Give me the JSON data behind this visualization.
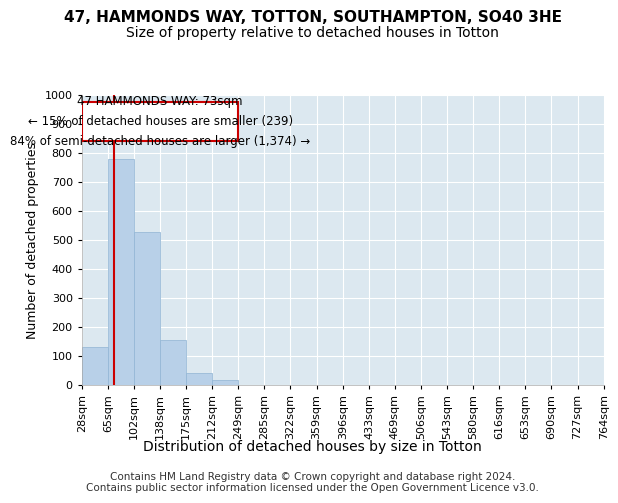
{
  "title": "47, HAMMONDS WAY, TOTTON, SOUTHAMPTON, SO40 3HE",
  "subtitle": "Size of property relative to detached houses in Totton",
  "xlabel": "Distribution of detached houses by size in Totton",
  "ylabel": "Number of detached properties",
  "bin_edges": [
    28,
    65,
    102,
    138,
    175,
    212,
    249,
    285,
    322,
    359,
    396,
    433,
    469,
    506,
    543,
    580,
    616,
    653,
    690,
    727,
    764
  ],
  "bar_heights": [
    130,
    780,
    525,
    155,
    40,
    15,
    0,
    0,
    0,
    0,
    0,
    0,
    0,
    0,
    0,
    0,
    0,
    0,
    0,
    0
  ],
  "bar_color": "#b8d0e8",
  "bar_edge_color": "#90b4d4",
  "property_size": 73,
  "red_line_color": "#cc0000",
  "annotation_line1": "47 HAMMONDS WAY: 73sqm",
  "annotation_line2": "← 15% of detached houses are smaller (239)",
  "annotation_line3": "84% of semi-detached houses are larger (1,374) →",
  "annotation_box_color": "#ffffff",
  "annotation_box_edge_color": "#cc0000",
  "ylim": [
    0,
    1000
  ],
  "yticks": [
    0,
    100,
    200,
    300,
    400,
    500,
    600,
    700,
    800,
    900,
    1000
  ],
  "background_color": "#dce8f0",
  "footer_text": "Contains HM Land Registry data © Crown copyright and database right 2024.\nContains public sector information licensed under the Open Government Licence v3.0.",
  "title_fontsize": 11,
  "subtitle_fontsize": 10,
  "xlabel_fontsize": 10,
  "ylabel_fontsize": 9,
  "tick_fontsize": 8,
  "annotation_fontsize": 8.5,
  "footer_fontsize": 7.5
}
